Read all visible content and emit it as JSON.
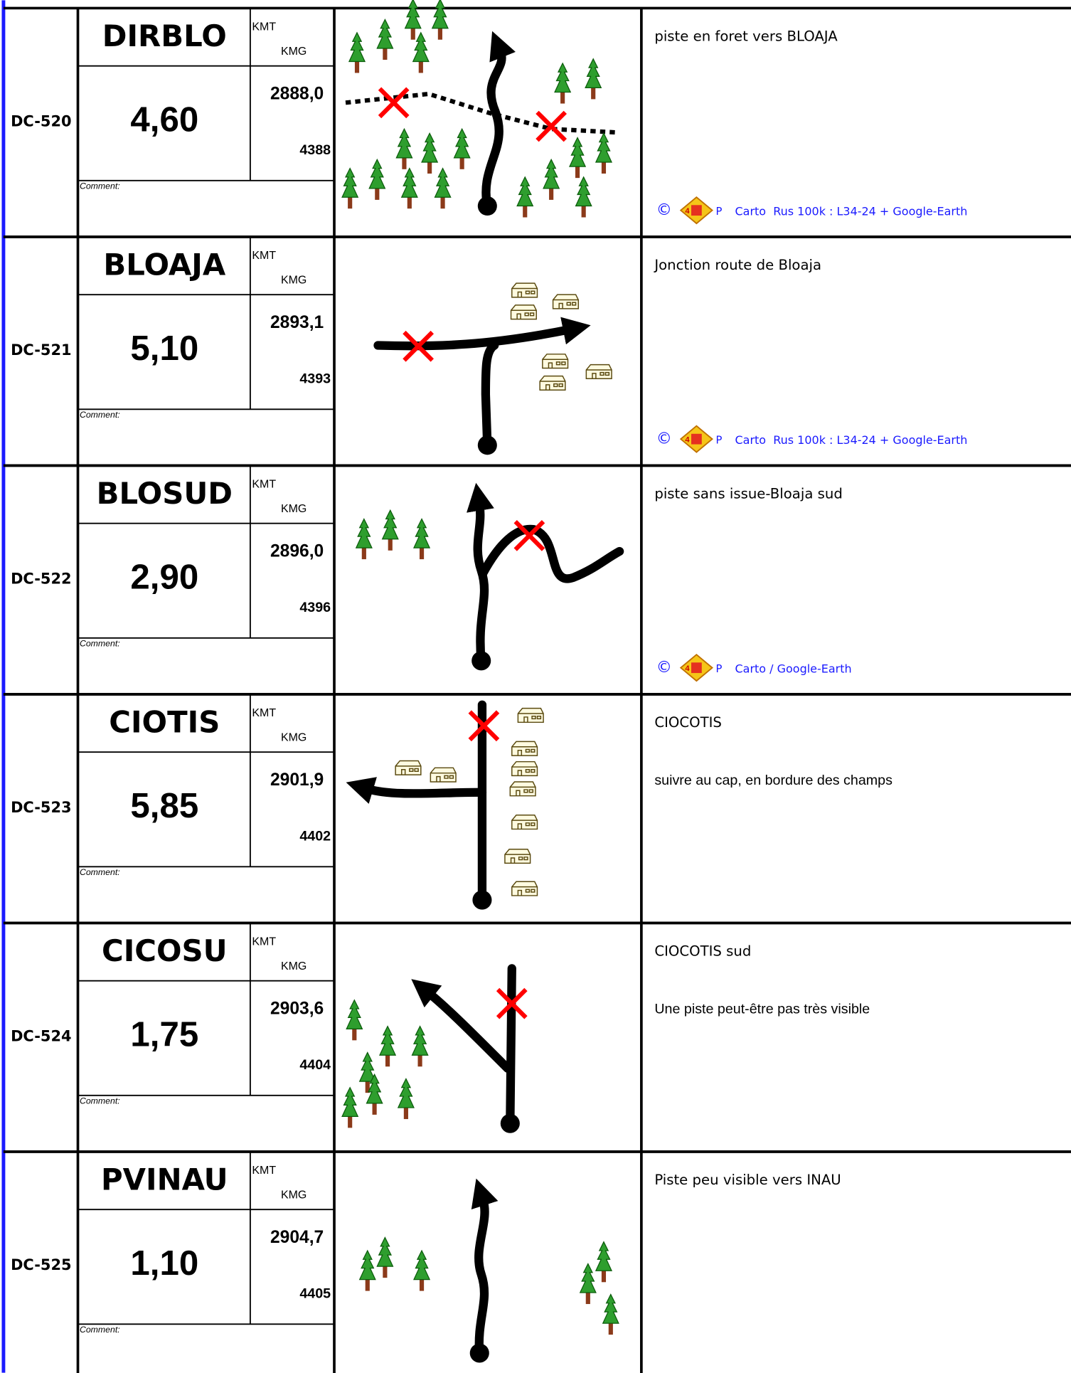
{
  "labels": {
    "kmt": "KMT",
    "kmg": "KMG",
    "comment": "Comment:",
    "copyright": "©",
    "logo_number": "4",
    "logo_letter": "P"
  },
  "rows": [
    {
      "id": "DC-520",
      "name": "DIRBLO",
      "distance": "4,60",
      "kmt": "2888,0",
      "kmg": "4388",
      "lines": [
        "piste en foret vers BLOAJA"
      ],
      "credit": "Carto  Rus 100k : L34-24 + Google-Earth"
    },
    {
      "id": "DC-521",
      "name": "BLOAJA",
      "distance": "5,10",
      "kmt": "2893,1",
      "kmg": "4393",
      "lines": [
        "Jonction route de Bloaja"
      ],
      "credit": "Carto  Rus 100k : L34-24 + Google-Earth"
    },
    {
      "id": "DC-522",
      "name": "BLOSUD",
      "distance": "2,90",
      "kmt": "2896,0",
      "kmg": "4396",
      "lines": [
        "piste sans issue-Bloaja sud"
      ],
      "credit": "Carto / Google-Earth"
    },
    {
      "id": "DC-523",
      "name": "CIOTIS",
      "distance": "5,85",
      "kmt": "2901,9",
      "kmg": "4402",
      "lines": [
        "CIOCOTIS",
        "suivre au cap, en bordure des champs"
      ]
    },
    {
      "id": "DC-524",
      "name": "CICOSU",
      "distance": "1,75",
      "kmt": "2903,6",
      "kmg": "4404",
      "lines": [
        "CIOCOTIS sud",
        "Une piste peut-être pas très visible"
      ]
    },
    {
      "id": "DC-525",
      "name": "PVINAU",
      "distance": "1,10",
      "kmt": "2904,7",
      "kmg": "4405",
      "lines": [
        "Piste peu visible vers INAU"
      ]
    }
  ]
}
